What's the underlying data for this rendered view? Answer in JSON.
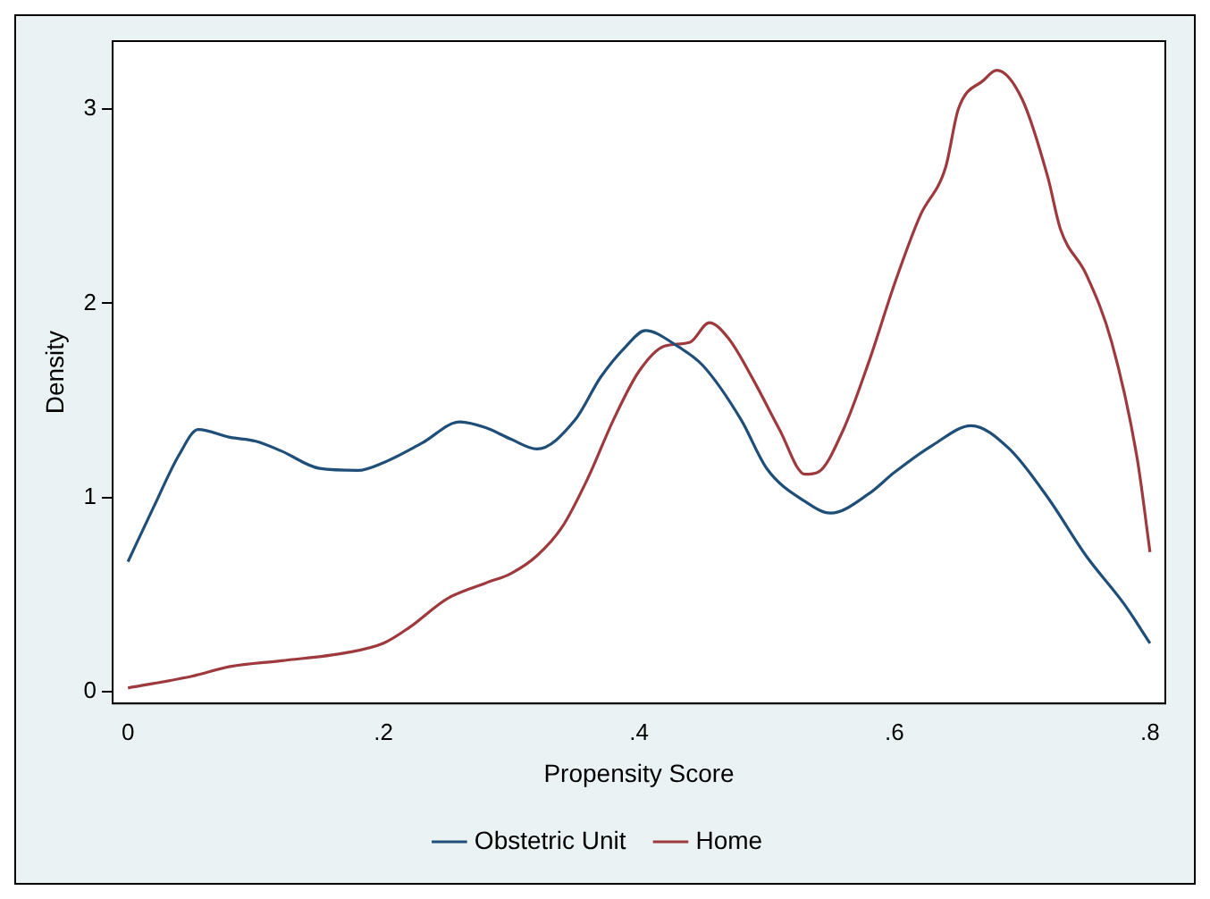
{
  "chart_data": {
    "type": "line",
    "xlabel": "Propensity Score",
    "ylabel": "Density",
    "xlim": [
      -0.012,
      0.812
    ],
    "ylim": [
      -0.06,
      3.35
    ],
    "xticks": [
      0,
      {
        "value": 0.2,
        "label": ".2"
      },
      {
        "value": 0.4,
        "label": ".4"
      },
      {
        "value": 0.6,
        "label": ".6"
      },
      {
        "value": 0.8,
        "label": ".8"
      }
    ],
    "yticks": [
      0,
      1,
      2,
      3
    ],
    "grid": false,
    "legend": "bottom",
    "marker": "none",
    "line_style": "solid",
    "series": [
      {
        "name": "Obstetric Unit",
        "color": "#1f4e79",
        "x": [
          0,
          0.02,
          0.04,
          0.055,
          0.08,
          0.1,
          0.12,
          0.15,
          0.18,
          0.2,
          0.23,
          0.26,
          0.28,
          0.3,
          0.32,
          0.35,
          0.37,
          0.39,
          0.405,
          0.43,
          0.45,
          0.48,
          0.5,
          0.53,
          0.55,
          0.58,
          0.6,
          0.63,
          0.66,
          0.69,
          0.72,
          0.75,
          0.78,
          0.8
        ],
        "values": [
          0.67,
          0.95,
          1.22,
          1.35,
          1.31,
          1.29,
          1.24,
          1.15,
          1.14,
          1.18,
          1.28,
          1.39,
          1.36,
          1.3,
          1.25,
          1.4,
          1.62,
          1.78,
          1.86,
          1.78,
          1.68,
          1.4,
          1.15,
          0.98,
          0.92,
          1.02,
          1.13,
          1.27,
          1.37,
          1.25,
          1.0,
          0.7,
          0.45,
          0.25
        ]
      },
      {
        "name": "Home",
        "color": "#9e3a3e",
        "x": [
          0,
          0.05,
          0.08,
          0.12,
          0.17,
          0.2,
          0.22,
          0.25,
          0.28,
          0.3,
          0.32,
          0.34,
          0.36,
          0.38,
          0.4,
          0.42,
          0.44,
          0.455,
          0.47,
          0.49,
          0.51,
          0.53,
          0.54,
          0.56,
          0.58,
          0.6,
          0.62,
          0.64,
          0.65,
          0.67,
          0.68,
          0.7,
          0.72,
          0.73,
          0.75,
          0.77,
          0.79,
          0.8
        ],
        "values": [
          0.02,
          0.08,
          0.13,
          0.16,
          0.2,
          0.25,
          0.33,
          0.48,
          0.56,
          0.61,
          0.7,
          0.85,
          1.1,
          1.4,
          1.65,
          1.78,
          1.8,
          1.9,
          1.82,
          1.6,
          1.35,
          1.12,
          1.13,
          1.35,
          1.7,
          2.1,
          2.45,
          2.7,
          3.0,
          3.15,
          3.2,
          3.05,
          2.65,
          2.38,
          2.15,
          1.8,
          1.2,
          0.72
        ]
      }
    ]
  }
}
